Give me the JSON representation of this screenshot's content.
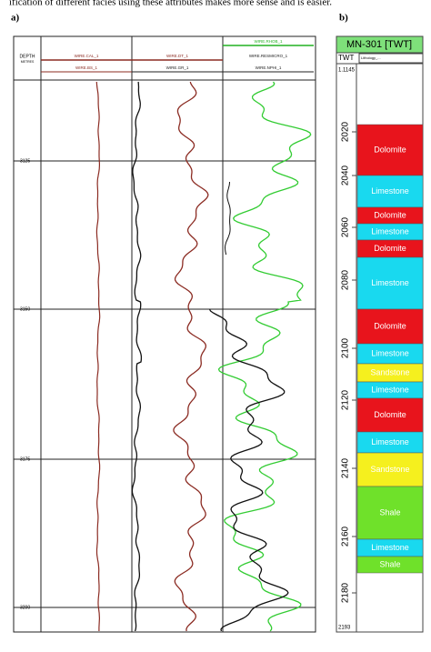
{
  "caption": "ification of different facies using these attributes makes more sense and is easier.",
  "panel_a": {
    "label": "a)",
    "depth_header": "DEPTH",
    "depth_unit": "METRES",
    "curves_top": [
      "WIRE.CAL_1",
      "WIRE.DT_1",
      "WIRE.RHOB_1"
    ],
    "curves_mid": [
      "",
      "",
      "WIRE.RESMICRO_1"
    ],
    "curves_bottom": [
      "WIRE.BS_1",
      "WIRE.GR_1",
      "WIRE.NPHI_1"
    ],
    "depth_ticks": [
      "3125",
      "3150",
      "3175",
      "3200"
    ]
  },
  "panel_b": {
    "label": "b)",
    "title": "MN-301 [TWT]",
    "axis": "TWT",
    "track": "Lithology_...",
    "top": "1.1145",
    "bottom": "2193",
    "depth_ticks": [
      "2020",
      "2040",
      "2060",
      "2080",
      "2100",
      "2120",
      "2140",
      "2160",
      "2180"
    ],
    "layers": [
      {
        "label": "Dolomite",
        "color": "#e8141c"
      },
      {
        "label": "Limestone",
        "color": "#19d9ef"
      },
      {
        "label": "Dolomite",
        "color": "#e8141c"
      },
      {
        "label": "Limestone",
        "color": "#19d9ef"
      },
      {
        "label": "Dolomite",
        "color": "#e8141c"
      },
      {
        "label": "Limestone",
        "color": "#19d9ef"
      },
      {
        "label": "Dolomite",
        "color": "#e8141c"
      },
      {
        "label": "Limestone",
        "color": "#19d9ef"
      },
      {
        "label": "Sandstone",
        "color": "#f5f01e"
      },
      {
        "label": "Limestone",
        "color": "#19d9ef"
      },
      {
        "label": "Dolomite",
        "color": "#e8141c"
      },
      {
        "label": "Limestone",
        "color": "#19d9ef"
      },
      {
        "label": "Sandstone",
        "color": "#f5f01e"
      },
      {
        "label": "Shale",
        "color": "#6fe12a"
      },
      {
        "label": "Limestone",
        "color": "#19d9ef"
      },
      {
        "label": "Shale",
        "color": "#6fe12a"
      }
    ]
  }
}
